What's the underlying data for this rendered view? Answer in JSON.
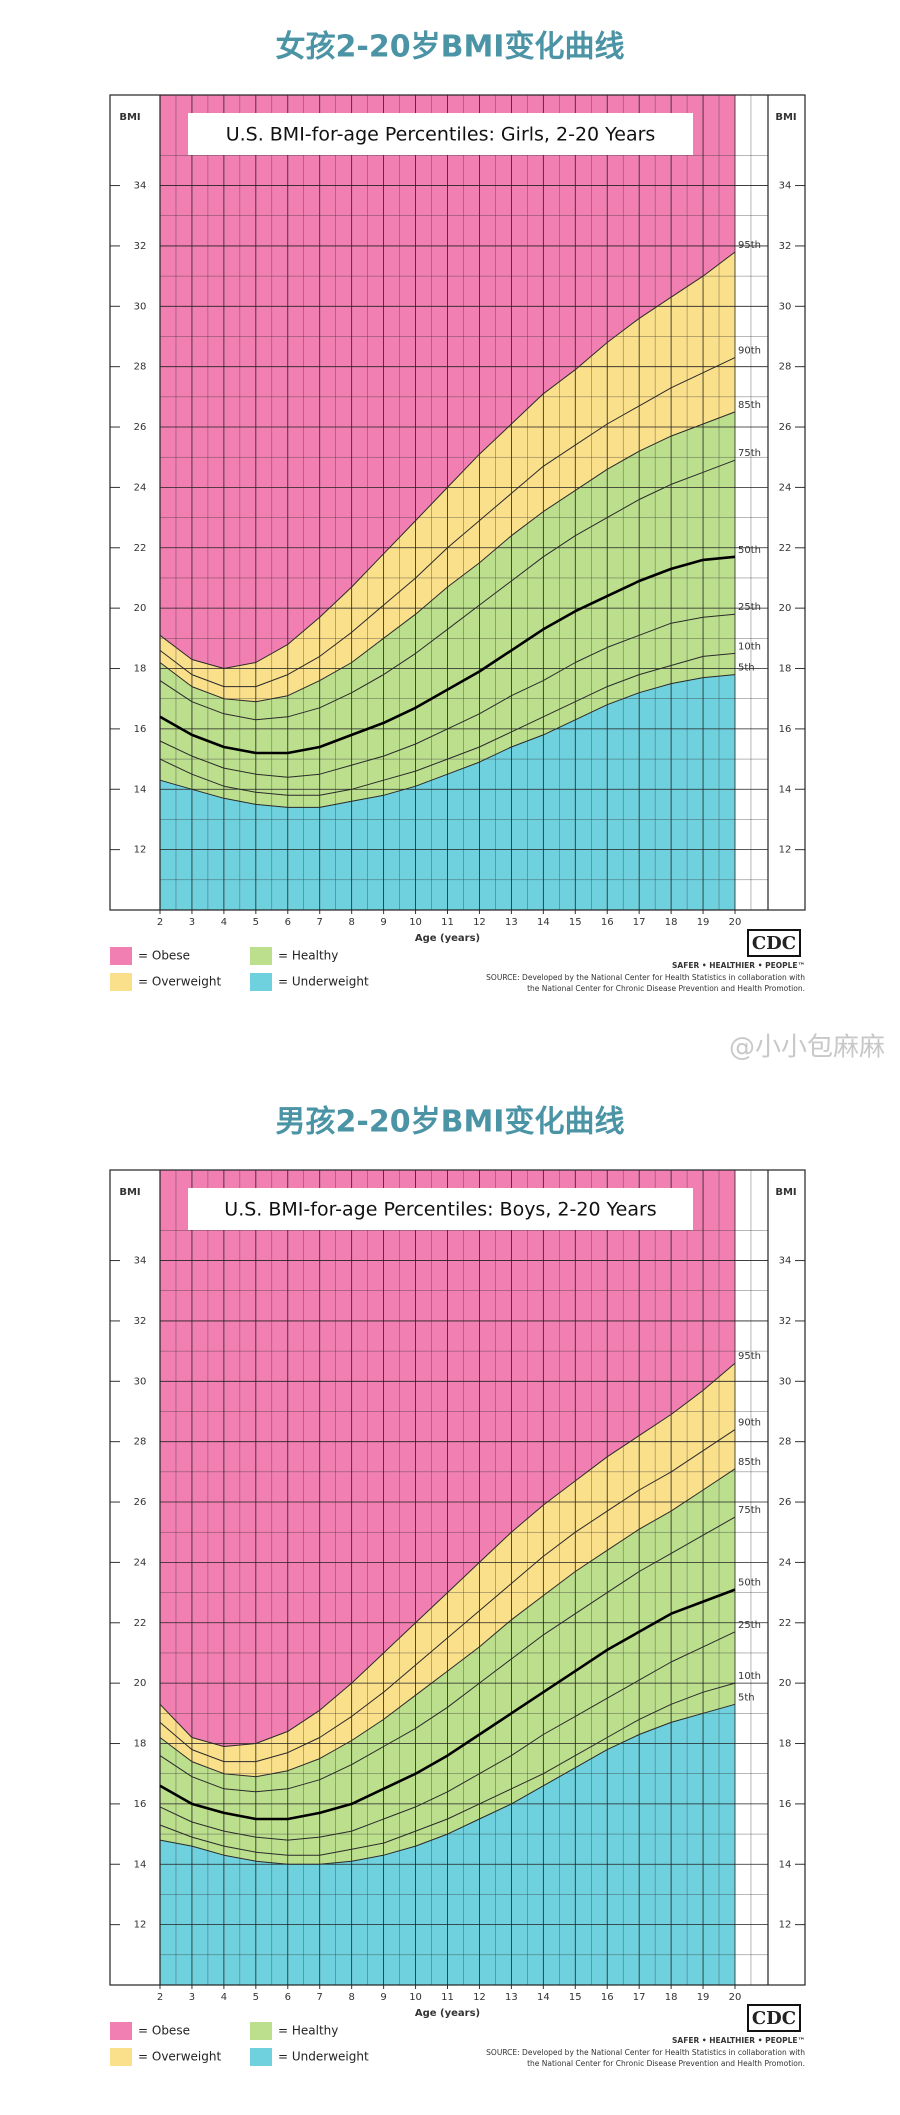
{
  "watermark": "@小小包麻麻",
  "chart_data": [
    {
      "type": "line",
      "heading": "女孩2-20岁BMI变化曲线",
      "title": "U.S. BMI-for-age Percentiles: Girls, 2-20 Years",
      "y_label": "BMI",
      "x_label": "Age (years)",
      "x": [
        2,
        3,
        4,
        5,
        6,
        7,
        8,
        9,
        10,
        11,
        12,
        13,
        14,
        15,
        16,
        17,
        18,
        19,
        20
      ],
      "xlim": [
        2,
        20
      ],
      "xticks": [
        2,
        3,
        4,
        5,
        6,
        7,
        8,
        9,
        10,
        11,
        12,
        13,
        14,
        15,
        16,
        17,
        18,
        19,
        20
      ],
      "ylim": [
        10,
        37
      ],
      "yticks": [
        12,
        14,
        16,
        18,
        20,
        22,
        24,
        26,
        28,
        30,
        32,
        34
      ],
      "grid": true,
      "series": [
        {
          "name": "5th",
          "color": "#2a2a2a",
          "line_width": 1,
          "values": [
            14.3,
            14.0,
            13.7,
            13.5,
            13.4,
            13.4,
            13.6,
            13.8,
            14.1,
            14.5,
            14.9,
            15.4,
            15.8,
            16.3,
            16.8,
            17.2,
            17.5,
            17.7,
            17.8
          ]
        },
        {
          "name": "10th",
          "color": "#2a2a2a",
          "line_width": 1,
          "values": [
            15.0,
            14.5,
            14.1,
            13.9,
            13.8,
            13.8,
            14.0,
            14.3,
            14.6,
            15.0,
            15.4,
            15.9,
            16.4,
            16.9,
            17.4,
            17.8,
            18.1,
            18.4,
            18.5
          ]
        },
        {
          "name": "25th",
          "color": "#2a2a2a",
          "line_width": 1,
          "values": [
            15.6,
            15.1,
            14.7,
            14.5,
            14.4,
            14.5,
            14.8,
            15.1,
            15.5,
            16.0,
            16.5,
            17.1,
            17.6,
            18.2,
            18.7,
            19.1,
            19.5,
            19.7,
            19.8
          ]
        },
        {
          "name": "50th",
          "color": "#000000",
          "line_width": 2.6,
          "values": [
            16.4,
            15.8,
            15.4,
            15.2,
            15.2,
            15.4,
            15.8,
            16.2,
            16.7,
            17.3,
            17.9,
            18.6,
            19.3,
            19.9,
            20.4,
            20.9,
            21.3,
            21.6,
            21.7
          ]
        },
        {
          "name": "75th",
          "color": "#2a2a2a",
          "line_width": 1,
          "values": [
            17.6,
            16.9,
            16.5,
            16.3,
            16.4,
            16.7,
            17.2,
            17.8,
            18.5,
            19.3,
            20.1,
            20.9,
            21.7,
            22.4,
            23.0,
            23.6,
            24.1,
            24.5,
            24.9
          ]
        },
        {
          "name": "85th",
          "color": "#2a2a2a",
          "line_width": 1,
          "values": [
            18.2,
            17.4,
            17.0,
            16.9,
            17.1,
            17.6,
            18.2,
            19.0,
            19.8,
            20.7,
            21.5,
            22.4,
            23.2,
            23.9,
            24.6,
            25.2,
            25.7,
            26.1,
            26.5
          ]
        },
        {
          "name": "90th",
          "color": "#2a2a2a",
          "line_width": 1,
          "values": [
            18.6,
            17.8,
            17.4,
            17.4,
            17.8,
            18.4,
            19.2,
            20.1,
            21.0,
            22.0,
            22.9,
            23.8,
            24.7,
            25.4,
            26.1,
            26.7,
            27.3,
            27.8,
            28.3
          ]
        },
        {
          "name": "95th",
          "color": "#2a2a2a",
          "line_width": 1,
          "values": [
            19.1,
            18.3,
            18.0,
            18.2,
            18.8,
            19.7,
            20.7,
            21.8,
            22.9,
            24.0,
            25.1,
            26.1,
            27.1,
            27.9,
            28.8,
            29.6,
            30.3,
            31.0,
            31.8
          ]
        }
      ],
      "legend": [
        {
          "label": "= Obese",
          "color": "#f27fb2"
        },
        {
          "label": "= Overweight",
          "color": "#fbe08c"
        },
        {
          "label": "= Healthy",
          "color": "#bcdf8e"
        },
        {
          "label": "= Underweight",
          "color": "#6fd1de"
        }
      ],
      "logo": "CDC",
      "tagline": "SAFER • HEALTHIER • PEOPLE™",
      "source": [
        "SOURCE: Developed by the National Center for Health Statistics in collaboration with",
        "the National Center for Chronic Disease Prevention and Health Promotion."
      ]
    },
    {
      "type": "line",
      "heading": "男孩2-20岁BMI变化曲线",
      "title": "U.S. BMI-for-age Percentiles: Boys, 2-20 Years",
      "y_label": "BMI",
      "x_label": "Age (years)",
      "x": [
        2,
        3,
        4,
        5,
        6,
        7,
        8,
        9,
        10,
        11,
        12,
        13,
        14,
        15,
        16,
        17,
        18,
        19,
        20
      ],
      "xlim": [
        2,
        20
      ],
      "xticks": [
        2,
        3,
        4,
        5,
        6,
        7,
        8,
        9,
        10,
        11,
        12,
        13,
        14,
        15,
        16,
        17,
        18,
        19,
        20
      ],
      "ylim": [
        10,
        37
      ],
      "yticks": [
        12,
        14,
        16,
        18,
        20,
        22,
        24,
        26,
        28,
        30,
        32,
        34
      ],
      "grid": true,
      "series": [
        {
          "name": "5th",
          "color": "#2a2a2a",
          "line_width": 1,
          "values": [
            14.8,
            14.6,
            14.3,
            14.1,
            14.0,
            14.0,
            14.1,
            14.3,
            14.6,
            15.0,
            15.5,
            16.0,
            16.6,
            17.2,
            17.8,
            18.3,
            18.7,
            19.0,
            19.3
          ]
        },
        {
          "name": "10th",
          "color": "#2a2a2a",
          "line_width": 1,
          "values": [
            15.3,
            14.9,
            14.6,
            14.4,
            14.3,
            14.3,
            14.5,
            14.7,
            15.1,
            15.5,
            16.0,
            16.5,
            17.0,
            17.6,
            18.2,
            18.8,
            19.3,
            19.7,
            20.0
          ]
        },
        {
          "name": "25th",
          "color": "#2a2a2a",
          "line_width": 1,
          "values": [
            15.9,
            15.4,
            15.1,
            14.9,
            14.8,
            14.9,
            15.1,
            15.5,
            15.9,
            16.4,
            17.0,
            17.6,
            18.3,
            18.9,
            19.5,
            20.1,
            20.7,
            21.2,
            21.7
          ]
        },
        {
          "name": "50th",
          "color": "#000000",
          "line_width": 2.6,
          "values": [
            16.6,
            16.0,
            15.7,
            15.5,
            15.5,
            15.7,
            16.0,
            16.5,
            17.0,
            17.6,
            18.3,
            19.0,
            19.7,
            20.4,
            21.1,
            21.7,
            22.3,
            22.7,
            23.1
          ]
        },
        {
          "name": "75th",
          "color": "#2a2a2a",
          "line_width": 1,
          "values": [
            17.6,
            16.9,
            16.5,
            16.4,
            16.5,
            16.8,
            17.3,
            17.9,
            18.5,
            19.2,
            20.0,
            20.8,
            21.6,
            22.3,
            23.0,
            23.7,
            24.3,
            24.9,
            25.5
          ]
        },
        {
          "name": "85th",
          "color": "#2a2a2a",
          "line_width": 1,
          "values": [
            18.2,
            17.4,
            17.0,
            16.9,
            17.1,
            17.5,
            18.1,
            18.8,
            19.6,
            20.4,
            21.2,
            22.1,
            22.9,
            23.7,
            24.4,
            25.1,
            25.7,
            26.4,
            27.1
          ]
        },
        {
          "name": "90th",
          "color": "#2a2a2a",
          "line_width": 1,
          "values": [
            18.7,
            17.8,
            17.4,
            17.4,
            17.7,
            18.2,
            18.9,
            19.7,
            20.6,
            21.5,
            22.4,
            23.3,
            24.2,
            25.0,
            25.7,
            26.4,
            27.0,
            27.7,
            28.4
          ]
        },
        {
          "name": "95th",
          "color": "#2a2a2a",
          "line_width": 1,
          "values": [
            19.3,
            18.2,
            17.9,
            18.0,
            18.4,
            19.1,
            20.0,
            21.0,
            22.0,
            23.0,
            24.0,
            25.0,
            25.9,
            26.7,
            27.5,
            28.2,
            28.9,
            29.7,
            30.6
          ]
        }
      ],
      "legend": [
        {
          "label": "= Obese",
          "color": "#f27fb2"
        },
        {
          "label": "= Overweight",
          "color": "#fbe08c"
        },
        {
          "label": "= Healthy",
          "color": "#bcdf8e"
        },
        {
          "label": "= Underweight",
          "color": "#6fd1de"
        }
      ],
      "logo": "CDC",
      "tagline": "SAFER • HEALTHIER • PEOPLE™",
      "source": [
        "SOURCE: Developed by the National Center for Health Statistics in collaboration with",
        "the National Center for Chronic Disease Prevention and Health Promotion."
      ]
    }
  ]
}
